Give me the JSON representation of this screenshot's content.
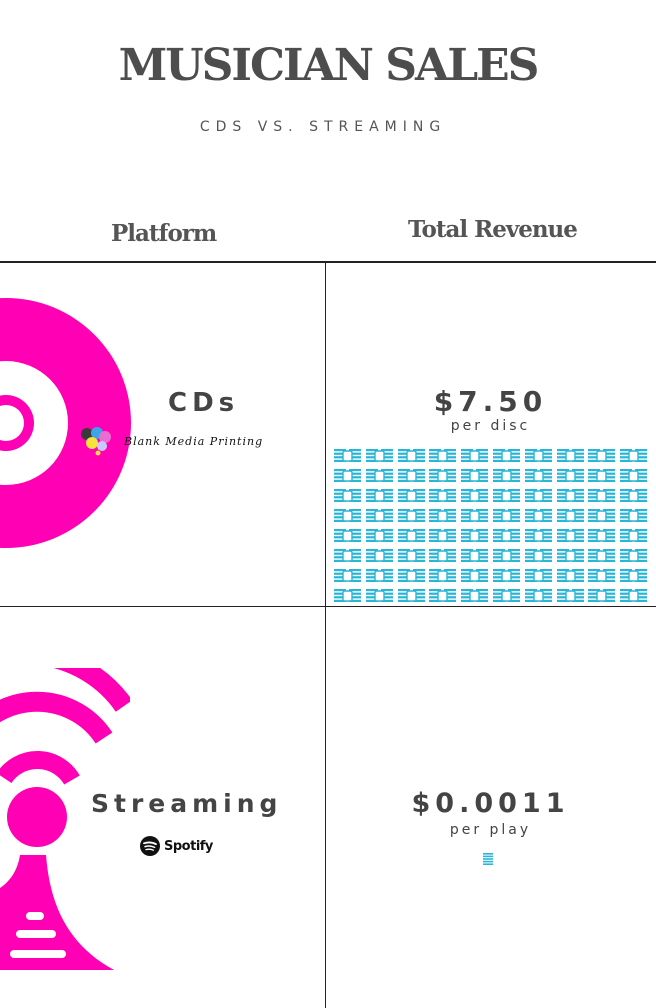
{
  "header": {
    "title": "MUSICIAN SALES",
    "subtitle": "CDS VS. STREAMING"
  },
  "table": {
    "col_platform": "Platform",
    "col_revenue": "Total Revenue"
  },
  "rows": [
    {
      "platform": "CDs",
      "logo_text": "Blank Media Printing",
      "price": "$7.50",
      "unit": "per disc",
      "icon_count": 80
    },
    {
      "platform": "Streaming",
      "logo_text": "Spotify",
      "price": "$0.0011",
      "unit": "per play",
      "icon_count": 1
    }
  ],
  "colors": {
    "accent": "#ff00b4",
    "icon": "#29b6d6",
    "text": "#4a4a4a"
  }
}
